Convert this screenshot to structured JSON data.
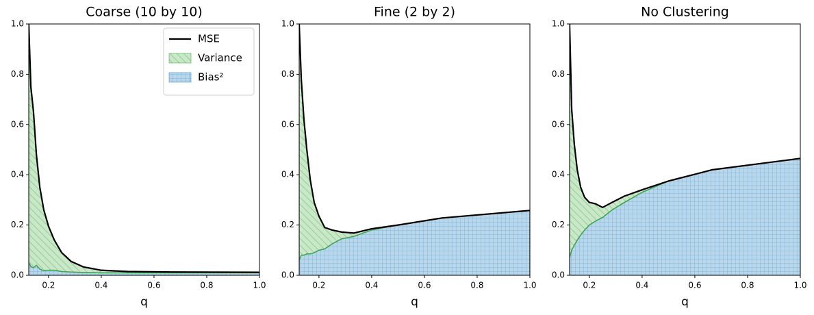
{
  "chart_data": [
    {
      "type": "area",
      "title": "Coarse (10 by 10)",
      "xlabel": "q",
      "legend": "upper right",
      "x": [
        0.125,
        0.133,
        0.143,
        0.154,
        0.167,
        0.182,
        0.2,
        0.222,
        0.25,
        0.286,
        0.333,
        0.4,
        0.5,
        0.667,
        1.0
      ],
      "series": [
        {
          "name": "MSE",
          "style": "line",
          "color": "#000000",
          "values": [
            1.0,
            0.75,
            0.65,
            0.48,
            0.35,
            0.26,
            0.195,
            0.14,
            0.09,
            0.055,
            0.033,
            0.02,
            0.015,
            0.013,
            0.012
          ]
        },
        {
          "name": "Variance",
          "style": "area",
          "stacked": true,
          "color": "#2ca02c",
          "values": [
            0.95,
            0.715,
            0.62,
            0.44,
            0.325,
            0.242,
            0.175,
            0.12,
            0.075,
            0.042,
            0.022,
            0.01,
            0.005,
            0.003,
            0.002
          ]
        },
        {
          "name": "Bias²",
          "style": "area",
          "color": "#1f77b4",
          "values": [
            0.05,
            0.035,
            0.03,
            0.04,
            0.025,
            0.018,
            0.02,
            0.02,
            0.015,
            0.013,
            0.011,
            0.01,
            0.01,
            0.01,
            0.01
          ]
        }
      ],
      "xlim": [
        0.125,
        1.0
      ],
      "xticks": [
        0.2,
        0.4,
        0.6,
        0.8,
        {
          "value": 1.0,
          "label": "1.0"
        }
      ],
      "ylim": [
        0,
        1.0
      ],
      "yticks": [
        {
          "value": 0,
          "label": "0.0"
        },
        0.2,
        0.4,
        0.6,
        0.8,
        {
          "value": 1.0,
          "label": "1.0"
        }
      ]
    },
    {
      "type": "area",
      "title": "Fine (2 by 2)",
      "xlabel": "q",
      "x": [
        0.125,
        0.133,
        0.143,
        0.154,
        0.167,
        0.182,
        0.2,
        0.222,
        0.25,
        0.286,
        0.333,
        0.4,
        0.5,
        0.667,
        1.0
      ],
      "series": [
        {
          "style": "line",
          "color": "#000000",
          "values": [
            1.0,
            0.78,
            0.62,
            0.5,
            0.38,
            0.29,
            0.235,
            0.19,
            0.18,
            0.172,
            0.168,
            0.185,
            0.2,
            0.228,
            0.258
          ]
        },
        {
          "style": "area",
          "stacked": true,
          "color": "#2ca02c",
          "values": [
            0.94,
            0.7,
            0.54,
            0.415,
            0.295,
            0.2,
            0.135,
            0.085,
            0.055,
            0.027,
            0.013,
            0.005,
            0,
            0,
            0
          ]
        },
        {
          "style": "area",
          "color": "#1f77b4",
          "values": [
            0.06,
            0.08,
            0.08,
            0.085,
            0.085,
            0.09,
            0.1,
            0.105,
            0.125,
            0.145,
            0.155,
            0.18,
            0.2,
            0.228,
            0.258
          ]
        }
      ],
      "xlim": [
        0.125,
        1.0
      ],
      "xticks": [
        0.2,
        0.4,
        0.6,
        0.8,
        {
          "value": 1.0,
          "label": "1.0"
        }
      ],
      "ylim": [
        0,
        1.0
      ],
      "yticks": [
        {
          "value": 0,
          "label": "0.0"
        },
        0.2,
        0.4,
        0.6,
        0.8,
        {
          "value": 1.0,
          "label": "1.0"
        }
      ]
    },
    {
      "type": "area",
      "title": "No Clustering",
      "xlabel": "q",
      "x": [
        0.125,
        0.133,
        0.143,
        0.154,
        0.167,
        0.182,
        0.2,
        0.222,
        0.25,
        0.286,
        0.333,
        0.4,
        0.5,
        0.667,
        1.0
      ],
      "series": [
        {
          "style": "line",
          "color": "#000000",
          "values": [
            1.0,
            0.66,
            0.52,
            0.42,
            0.35,
            0.31,
            0.29,
            0.285,
            0.27,
            0.29,
            0.315,
            0.34,
            0.375,
            0.42,
            0.465
          ]
        },
        {
          "style": "area",
          "stacked": true,
          "color": "#2ca02c",
          "values": [
            0.93,
            0.56,
            0.4,
            0.28,
            0.19,
            0.13,
            0.09,
            0.07,
            0.04,
            0.03,
            0.025,
            0.01,
            0,
            0,
            0
          ]
        },
        {
          "style": "area",
          "color": "#1f77b4",
          "values": [
            0.07,
            0.1,
            0.12,
            0.14,
            0.16,
            0.18,
            0.2,
            0.215,
            0.23,
            0.26,
            0.29,
            0.33,
            0.375,
            0.42,
            0.465
          ]
        }
      ],
      "xlim": [
        0.125,
        1.0
      ],
      "xticks": [
        0.2,
        0.4,
        0.6,
        0.8,
        {
          "value": 1.0,
          "label": "1.0"
        }
      ],
      "ylim": [
        0,
        1.0
      ],
      "yticks": [
        {
          "value": 0,
          "label": "0.0"
        },
        0.2,
        0.4,
        0.6,
        0.8,
        {
          "value": 1.0,
          "label": "1.0"
        }
      ]
    }
  ]
}
